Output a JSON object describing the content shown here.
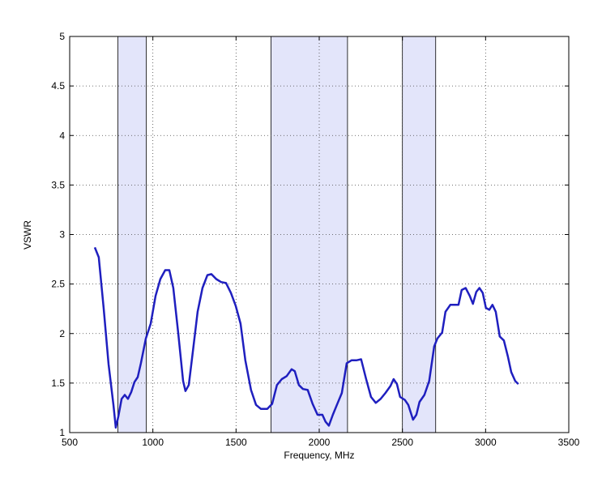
{
  "chart_data": {
    "type": "line",
    "xlabel": "Frequency, MHz",
    "ylabel": "VSWR",
    "color": "#1f1fbf",
    "grid": true,
    "xlim": [
      500,
      3500
    ],
    "ylim": [
      1,
      5
    ],
    "xticks": [
      500,
      1000,
      1500,
      2000,
      2500,
      3000,
      3500
    ],
    "yticks": [
      1,
      1.5,
      2,
      2.5,
      3,
      3.5,
      4,
      4.5,
      5
    ],
    "bands": [
      {
        "from": 790,
        "to": 960
      },
      {
        "from": 1710,
        "to": 2170
      },
      {
        "from": 2500,
        "to": 2700
      }
    ],
    "band_color": "#e3e5fa",
    "x": [
      651,
      675,
      704,
      734,
      763,
      777,
      792,
      812,
      831,
      850,
      870,
      889,
      909,
      928,
      958,
      987,
      1016,
      1045,
      1074,
      1099,
      1123,
      1152,
      1182,
      1196,
      1216,
      1240,
      1269,
      1298,
      1328,
      1352,
      1381,
      1410,
      1440,
      1469,
      1498,
      1527,
      1556,
      1590,
      1620,
      1649,
      1688,
      1717,
      1746,
      1775,
      1804,
      1834,
      1853,
      1878,
      1902,
      1931,
      1960,
      1990,
      2019,
      2038,
      2058,
      2082,
      2106,
      2136,
      2165,
      2194,
      2223,
      2252,
      2282,
      2311,
      2340,
      2369,
      2398,
      2428,
      2447,
      2467,
      2486,
      2515,
      2535,
      2564,
      2584,
      2603,
      2632,
      2661,
      2691,
      2710,
      2739,
      2759,
      2788,
      2817,
      2837,
      2856,
      2880,
      2905,
      2924,
      2944,
      2963,
      2983,
      3002,
      3022,
      3041,
      3061,
      3085,
      3110,
      3134,
      3154,
      3178,
      3197
    ],
    "values": [
      2.87,
      2.77,
      2.26,
      1.69,
      1.28,
      1.05,
      1.16,
      1.34,
      1.38,
      1.34,
      1.41,
      1.51,
      1.56,
      1.7,
      1.95,
      2.1,
      2.38,
      2.55,
      2.64,
      2.64,
      2.46,
      2.01,
      1.52,
      1.42,
      1.48,
      1.81,
      2.22,
      2.46,
      2.59,
      2.6,
      2.55,
      2.52,
      2.51,
      2.41,
      2.28,
      2.1,
      1.73,
      1.43,
      1.28,
      1.24,
      1.24,
      1.29,
      1.48,
      1.54,
      1.57,
      1.64,
      1.62,
      1.48,
      1.44,
      1.43,
      1.29,
      1.18,
      1.18,
      1.11,
      1.07,
      1.18,
      1.28,
      1.4,
      1.7,
      1.73,
      1.73,
      1.74,
      1.54,
      1.36,
      1.3,
      1.34,
      1.4,
      1.47,
      1.54,
      1.49,
      1.36,
      1.33,
      1.28,
      1.13,
      1.18,
      1.31,
      1.38,
      1.52,
      1.87,
      1.95,
      2.01,
      2.22,
      2.29,
      2.29,
      2.29,
      2.44,
      2.46,
      2.38,
      2.3,
      2.42,
      2.46,
      2.41,
      2.26,
      2.24,
      2.29,
      2.22,
      1.97,
      1.93,
      1.77,
      1.61,
      1.52,
      1.49
    ]
  }
}
